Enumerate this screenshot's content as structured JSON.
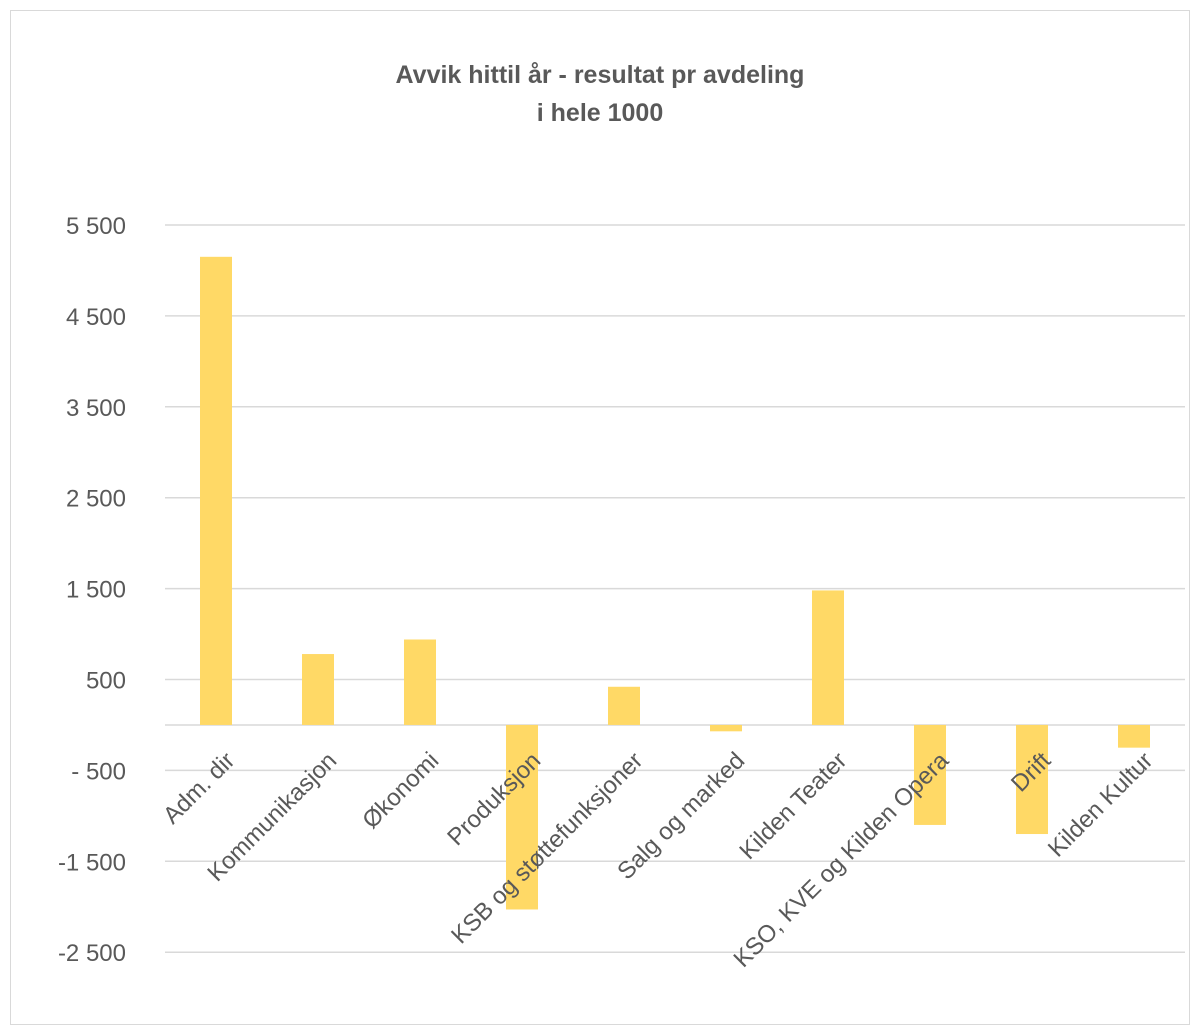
{
  "chart_data": {
    "type": "bar",
    "title": "Avvik hittil år - resultat pr avdeling",
    "subtitle": "i hele 1000",
    "xlabel": "",
    "ylabel": "",
    "categories": [
      "Adm. dir",
      "Kommunikasjon",
      "Økonomi",
      "Produksjon",
      "KSB og støttefunksjoner",
      "Salg og marked",
      "Kilden Teater",
      "KSO, KVE og Kilden Opera",
      "Drift",
      "Kilden Kultur"
    ],
    "series": [
      {
        "values": [
          5150,
          780,
          940,
          -2030,
          420,
          -70,
          1480,
          -1100,
          -1200,
          -250
        ]
      }
    ],
    "yticks": [
      5500,
      4500,
      3500,
      2500,
      1500,
      500,
      -500,
      -1500,
      -2500
    ],
    "ytick_labels": [
      "5 500",
      "4 500",
      "3 500",
      "2 500",
      "1 500",
      "500",
      "- 500",
      "-1 500",
      "-2 500"
    ],
    "ylim": [
      -2900,
      5500
    ],
    "grid": true,
    "legend": "none",
    "bar_color": "#ffd966",
    "grid_color": "#d9d9d9",
    "text_color": "#595959"
  }
}
